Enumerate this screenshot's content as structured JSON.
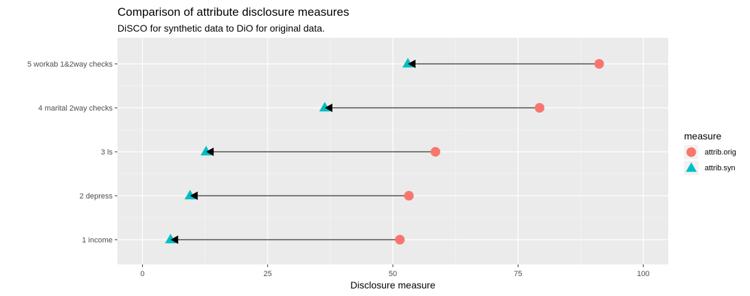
{
  "chart_data": {
    "type": "dumbbell-arrow",
    "title": "Comparison of attribute disclosure measures",
    "subtitle": "DiSCO for synthetic data  to DiO for original data.",
    "xlabel": "Disclosure measure",
    "ylabel": "",
    "xlim": [
      -5,
      105
    ],
    "x_ticks": [
      0,
      25,
      50,
      75,
      100
    ],
    "x_tick_labels": [
      "0",
      "25",
      "50",
      "75",
      "100"
    ],
    "grid": true,
    "categories": [
      "1 income",
      "2 depress",
      "3 ls",
      "4 marital 2way checks",
      "5 workab 1&2way checks"
    ],
    "series": [
      {
        "name": "attrib.orig",
        "color": "#F8766D",
        "marker": "circle",
        "values": [
          51.4,
          53.2,
          58.5,
          79.3,
          91.2
        ]
      },
      {
        "name": "attrib.syn",
        "color": "#00BFC4",
        "marker": "triangle",
        "values": [
          5.6,
          9.5,
          12.7,
          36.4,
          53.0
        ]
      }
    ],
    "arrows": {
      "from": "attrib.orig",
      "to": "attrib.syn",
      "color": "#000000"
    },
    "legend": {
      "title": "measure",
      "position": "right"
    }
  }
}
